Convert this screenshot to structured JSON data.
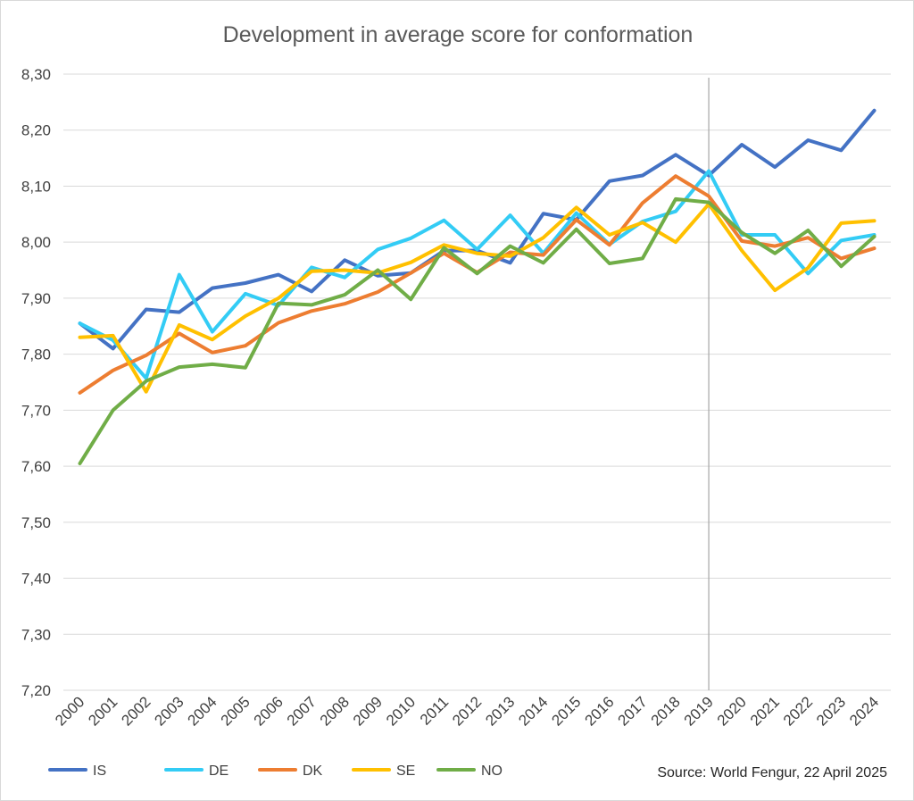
{
  "chart_data": {
    "type": "line",
    "title": "Development in average score for conformation",
    "xlabel": "",
    "ylabel": "",
    "ylim": [
      7.2,
      8.3
    ],
    "y_ticks": [
      "7,20",
      "7,30",
      "7,40",
      "7,50",
      "7,60",
      "7,70",
      "7,80",
      "7,90",
      "8,00",
      "8,10",
      "8,20",
      "8,30"
    ],
    "categories": [
      "2000",
      "2001",
      "2002",
      "2003",
      "2004",
      "2005",
      "2006",
      "2007",
      "2008",
      "2009",
      "2010",
      "2011",
      "2012",
      "2013",
      "2014",
      "2015",
      "2016",
      "2017",
      "2018",
      "2019",
      "2020",
      "2021",
      "2022",
      "2023",
      "2024"
    ],
    "grid": true,
    "legend_position": "bottom-left",
    "marker_line_category": "2019",
    "source": "Source: World Fengur, 22 April 2025",
    "series": [
      {
        "name": "IS",
        "color": "#4472C4",
        "values": [
          7.855,
          7.81,
          7.88,
          7.875,
          7.918,
          7.927,
          7.942,
          7.912,
          7.968,
          7.94,
          7.945,
          7.985,
          7.985,
          7.963,
          8.051,
          8.04,
          8.109,
          8.119,
          8.156,
          8.119,
          8.174,
          8.134,
          8.182,
          8.164,
          8.235
        ]
      },
      {
        "name": "DE",
        "color": "#33CCF5",
        "values": [
          7.855,
          7.825,
          7.757,
          7.942,
          7.84,
          7.908,
          7.887,
          7.955,
          7.937,
          7.987,
          8.007,
          8.039,
          7.987,
          8.048,
          7.98,
          8.052,
          7.996,
          8.037,
          8.055,
          8.127,
          8.013,
          8.013,
          7.944,
          8.003,
          8.013
        ]
      },
      {
        "name": "DK",
        "color": "#ED7D31",
        "values": [
          7.731,
          7.771,
          7.798,
          7.837,
          7.803,
          7.815,
          7.856,
          7.877,
          7.89,
          7.911,
          7.945,
          7.98,
          7.946,
          7.982,
          7.977,
          8.04,
          7.995,
          8.07,
          8.118,
          8.082,
          8.002,
          7.993,
          8.008,
          7.971,
          7.989
        ]
      },
      {
        "name": "SE",
        "color": "#FFC000",
        "values": [
          7.83,
          7.833,
          7.733,
          7.852,
          7.826,
          7.868,
          7.9,
          7.948,
          7.95,
          7.945,
          7.964,
          7.995,
          7.98,
          7.975,
          8.008,
          8.062,
          8.013,
          8.035,
          8.0,
          8.068,
          7.985,
          7.914,
          7.954,
          8.034,
          8.038
        ]
      },
      {
        "name": "NO",
        "color": "#70AD47",
        "values": [
          7.605,
          7.7,
          7.752,
          7.777,
          7.782,
          7.776,
          7.891,
          7.888,
          7.906,
          7.95,
          7.898,
          7.99,
          7.944,
          7.993,
          7.963,
          8.023,
          7.962,
          7.971,
          8.077,
          8.071,
          8.017,
          7.98,
          8.021,
          7.957,
          8.01
        ]
      }
    ]
  }
}
